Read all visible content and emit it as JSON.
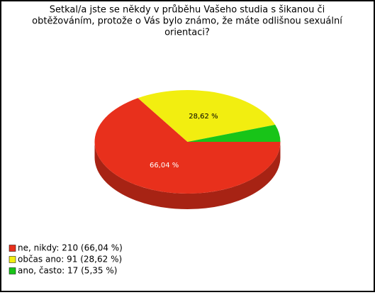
{
  "chart_data": {
    "type": "pie",
    "title": [
      "Setkal/a jste se někdy v průběhu Vašeho studia s šikanou či",
      "obtěžováním, protože o Vás bylo známo, že máte odlišnou sexuální",
      "orientaci?"
    ],
    "categories": [
      "ne, nikdy: 210 (66,04 %)",
      "občas ano: 91 (28,62 %)",
      "ano, často: 17 (5,35 %)"
    ],
    "values": [
      66.04,
      28.62,
      5.35
    ],
    "value_labels": [
      "66,04 %",
      "28,62 %",
      null
    ],
    "colors": [
      "#e8301c",
      "#f2ee10",
      "#18c418"
    ],
    "legend": "bottom-left"
  }
}
